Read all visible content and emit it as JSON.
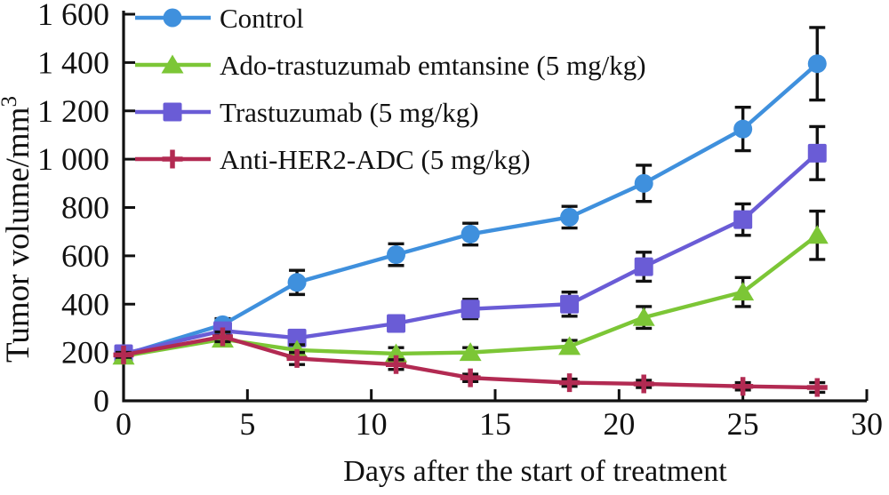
{
  "figure": {
    "background": "#ffffff",
    "axis_color": "#111111",
    "error_bar_color": "#111111"
  },
  "chart_data": {
    "type": "line",
    "title": "",
    "xlabel": "Days after the start of treatment",
    "ylabel": {
      "text": "Tumor volume/mm",
      "superscript": "3"
    },
    "x": [
      0,
      4,
      7,
      11,
      14,
      18,
      21,
      25,
      28
    ],
    "xlim": [
      0,
      30
    ],
    "xticks": [
      {
        "value": 0,
        "label": "0"
      },
      {
        "value": 5,
        "label": "5"
      },
      {
        "value": 10,
        "label": "10"
      },
      {
        "value": 15,
        "label": "15"
      },
      {
        "value": 20,
        "label": "20"
      },
      {
        "value": 25,
        "label": "25"
      },
      {
        "value": 30,
        "label": "30"
      }
    ],
    "ylim": [
      0,
      1600
    ],
    "yticks": [
      {
        "value": 0,
        "label": "0"
      },
      {
        "value": 200,
        "label": "200"
      },
      {
        "value": 400,
        "label": "400"
      },
      {
        "value": 600,
        "label": "600"
      },
      {
        "value": 800,
        "label": "800"
      },
      {
        "value": 1000,
        "label": "1 000"
      },
      {
        "value": 1200,
        "label": "1 200"
      },
      {
        "value": 1400,
        "label": "1 400"
      },
      {
        "value": 1600,
        "label": "1 600"
      }
    ],
    "grid": false,
    "legend_position": "top-left-inside",
    "draw_order": [
      0,
      2,
      1,
      3
    ],
    "series": [
      {
        "name": "Control",
        "marker": "circle",
        "color": "#3f90dd",
        "values": [
          190,
          315,
          490,
          605,
          690,
          760,
          900,
          1125,
          1395
        ],
        "errors": [
          15,
          25,
          50,
          45,
          45,
          45,
          75,
          90,
          150
        ]
      },
      {
        "name": "Ado-trastuzumab emtansine (5 mg/kg)",
        "marker": "triangle",
        "color": "#7cc636",
        "values": [
          185,
          255,
          210,
          195,
          200,
          225,
          345,
          450,
          685
        ],
        "errors": [
          12,
          15,
          22,
          25,
          20,
          25,
          45,
          60,
          100
        ]
      },
      {
        "name": "Trastuzumab (5 mg/kg)",
        "marker": "square",
        "color": "#6a5cd6",
        "values": [
          195,
          290,
          260,
          320,
          380,
          400,
          555,
          750,
          1025
        ],
        "errors": [
          15,
          20,
          25,
          30,
          40,
          50,
          60,
          65,
          110
        ]
      },
      {
        "name": "Anti-HER2-ADC (5 mg/kg)",
        "marker": "plus",
        "color": "#b22a52",
        "values": [
          190,
          265,
          175,
          150,
          95,
          75,
          70,
          60,
          55
        ],
        "errors": [
          10,
          20,
          25,
          20,
          15,
          15,
          15,
          15,
          20
        ]
      }
    ]
  }
}
